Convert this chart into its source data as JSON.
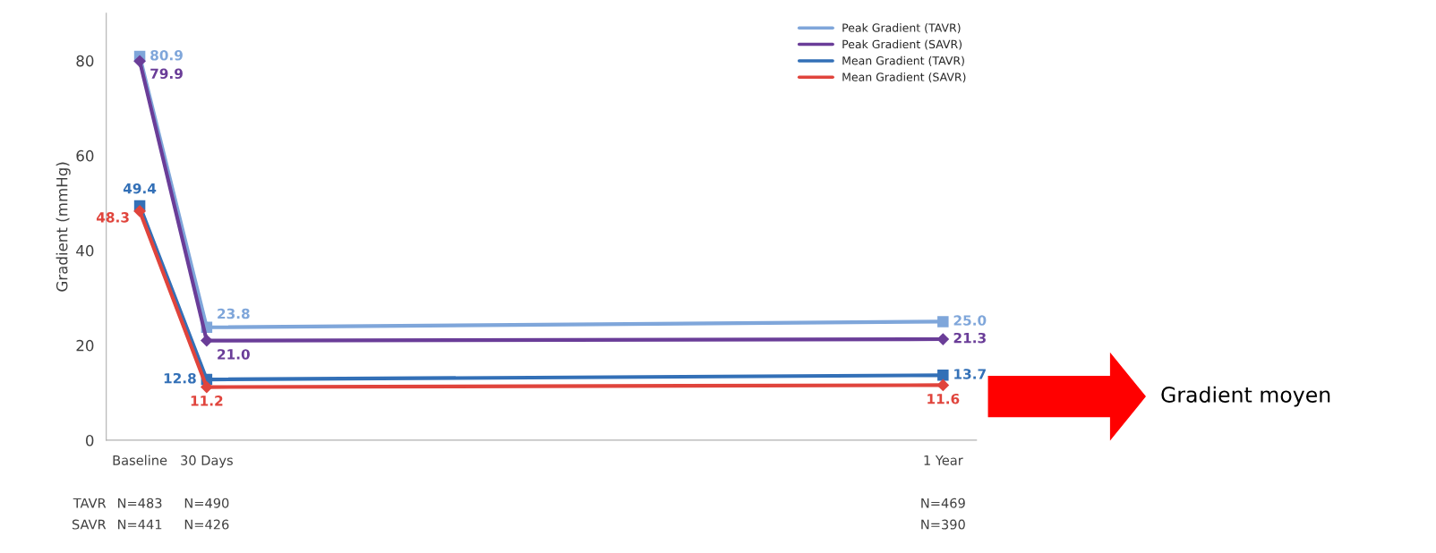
{
  "chart_data": {
    "type": "line",
    "ylabel": "Gradient (mmHg)",
    "categories": [
      "Baseline",
      "30 Days",
      null,
      null,
      null,
      null,
      null,
      null,
      null,
      null,
      null,
      null,
      "1 Year"
    ],
    "series": [
      {
        "name": "Peak Gradient (TAVR)",
        "color": "#7fa6da",
        "marker": "square",
        "values": [
          80.9,
          23.8,
          null,
          null,
          null,
          null,
          null,
          null,
          null,
          null,
          null,
          null,
          25.0
        ],
        "value_labels": [
          "80.9",
          "23.8",
          null,
          null,
          null,
          null,
          null,
          null,
          null,
          null,
          null,
          null,
          "25.0"
        ]
      },
      {
        "name": "Peak Gradient (SAVR)",
        "color": "#6a3d98",
        "marker": "diamond",
        "values": [
          79.9,
          21.0,
          null,
          null,
          null,
          null,
          null,
          null,
          null,
          null,
          null,
          null,
          21.3
        ],
        "value_labels": [
          "79.9",
          "21.0",
          null,
          null,
          null,
          null,
          null,
          null,
          null,
          null,
          null,
          null,
          "21.3"
        ]
      },
      {
        "name": "Mean Gradient (TAVR)",
        "color": "#3370b7",
        "marker": "square",
        "values": [
          49.4,
          12.8,
          null,
          null,
          null,
          null,
          null,
          null,
          null,
          null,
          null,
          null,
          13.7
        ],
        "value_labels": [
          "49.4",
          "12.8",
          null,
          null,
          null,
          null,
          null,
          null,
          null,
          null,
          null,
          null,
          "13.7"
        ]
      },
      {
        "name": "Mean Gradient (SAVR)",
        "color": "#e0443c",
        "marker": "diamond",
        "values": [
          48.3,
          11.2,
          null,
          null,
          null,
          null,
          null,
          null,
          null,
          null,
          null,
          null,
          11.6
        ],
        "value_labels": [
          "48.3",
          "11.2",
          null,
          null,
          null,
          null,
          null,
          null,
          null,
          null,
          null,
          null,
          "11.6"
        ]
      }
    ],
    "ylim": [
      0,
      90
    ],
    "yticks": [
      0,
      20,
      40,
      60,
      80
    ],
    "legend": "top right",
    "grid": false,
    "annotations": [
      "TAVR",
      "N=483",
      "N=490",
      "N=469",
      "SAVR",
      "N=441",
      "N=426",
      "N=390",
      "Gradient moyen"
    ]
  }
}
